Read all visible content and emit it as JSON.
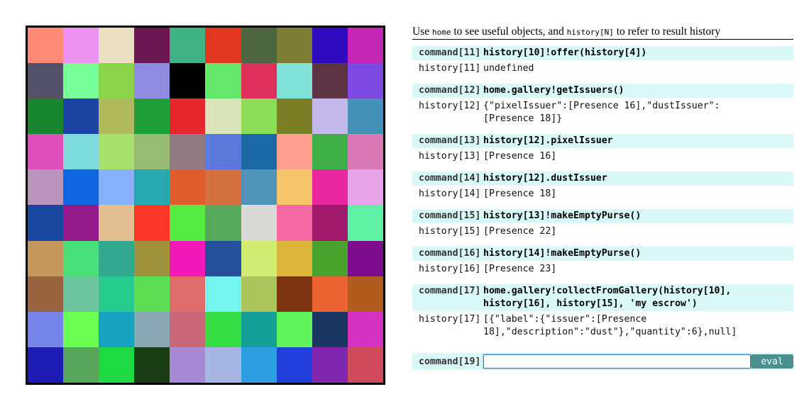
{
  "gallery": {
    "colors": [
      "#ff8a78",
      "#ee92f0",
      "#ebdfc1",
      "#6b1751",
      "#40b286",
      "#e13721",
      "#4d6641",
      "#7c7c34",
      "#2e0bbf",
      "#c226b3",
      "#535167",
      "#77ff9a",
      "#8bd449",
      "#8f8bde",
      "#000000",
      "#65e76c",
      "#df305c",
      "#81e2d7",
      "#5d3443",
      "#7c4ae3",
      "#1a852f",
      "#1b45a1",
      "#b0ba5d",
      "#1e9f38",
      "#e6272e",
      "#dbe3b9",
      "#8ddd57",
      "#7a7f26",
      "#c3b9ea",
      "#4491b8",
      "#df4fbb",
      "#7edbdb",
      "#a8e06d",
      "#98bc74",
      "#907a82",
      "#5a7adc",
      "#1b69a5",
      "#ff9f8f",
      "#3daf44",
      "#d879b5",
      "#b994ba",
      "#0e66e0",
      "#87b1fb",
      "#28a8af",
      "#e05c2e",
      "#d4703f",
      "#4f94b8",
      "#f7c66a",
      "#e827a0",
      "#e8a4e8",
      "#1a47a0",
      "#951a8c",
      "#e2be92",
      "#fd382b",
      "#55eb43",
      "#56a85a",
      "#d9d9d7",
      "#f56aa3",
      "#a0196a",
      "#5ef2a7",
      "#c4975b",
      "#49e07a",
      "#32a98f",
      "#9e923c",
      "#f018b7",
      "#25519a",
      "#d2eb72",
      "#dbb63b",
      "#4aa22f",
      "#7b0d8d",
      "#996540",
      "#6cc59f",
      "#25cb8c",
      "#5dde55",
      "#e06c6b",
      "#76f4f0",
      "#adc45c",
      "#7d3410",
      "#ea6132",
      "#b05c1f",
      "#7784ea",
      "#6bff52",
      "#17a3bf",
      "#88a7b3",
      "#c9677a",
      "#37df46",
      "#149f99",
      "#5ff45c",
      "#1b3863",
      "#d532c2",
      "#1f1cb5",
      "#56a55a",
      "#1ed944",
      "#1a3c14",
      "#a78ad5",
      "#a8b6e4",
      "#2e9ee2",
      "#2140db",
      "#8126b1",
      "#d04a5b"
    ]
  },
  "help": {
    "prefix": "Use ",
    "home": "home",
    "middle": " to see useful objects, and ",
    "history": "history[N]",
    "suffix": " to refer to result history"
  },
  "entries": [
    {
      "cmd_label": "command[11]",
      "cmd": "history[10]!offer(history[4])",
      "res_label": "history[11]",
      "res": "undefined"
    },
    {
      "cmd_label": "command[12]",
      "cmd": "home.gallery!getIssuers()",
      "res_label": "history[12]",
      "res": "{\"pixelIssuer\":[Presence 16],\"dustIssuer\":\n[Presence 18]}"
    },
    {
      "cmd_label": "command[13]",
      "cmd": "history[12].pixelIssuer",
      "res_label": "history[13]",
      "res": "[Presence 16]"
    },
    {
      "cmd_label": "command[14]",
      "cmd": "history[12].dustIssuer",
      "res_label": "history[14]",
      "res": "[Presence 18]"
    },
    {
      "cmd_label": "command[15]",
      "cmd": "history[13]!makeEmptyPurse()",
      "res_label": "history[15]",
      "res": "[Presence 22]"
    },
    {
      "cmd_label": "command[16]",
      "cmd": "history[14]!makeEmptyPurse()",
      "res_label": "history[16]",
      "res": "[Presence 23]"
    },
    {
      "cmd_label": "command[17]",
      "cmd": "home.gallery!collectFromGallery(history[10],\nhistory[16], history[15], 'my escrow')",
      "res_label": "history[17]",
      "res": "[{\"label\":{\"issuer\":[Presence\n18],\"description\":\"dust\"},\"quantity\":6},null]"
    }
  ],
  "input": {
    "label": "command[19]",
    "value": "",
    "button": "eval"
  }
}
